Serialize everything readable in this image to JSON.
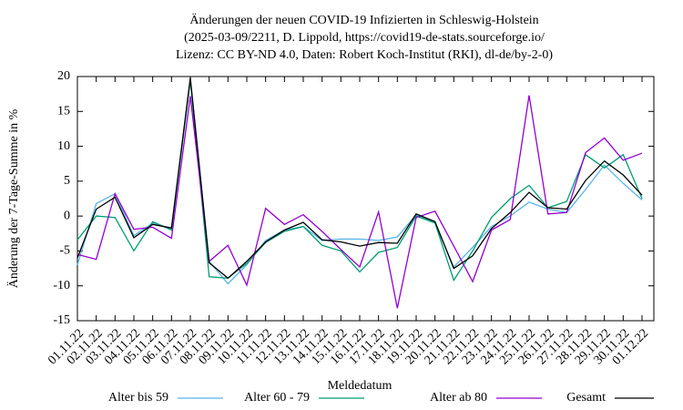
{
  "chart_data": {
    "type": "line",
    "title": "Änderungen der neuen COVID-19 Infizierten in Schleswig-Holstein",
    "subtitle": "(2025-03-09/2211, D. Lippold, https://covid19-de-stats.sourceforge.io/",
    "subtitle2": "Lizenz: CC BY-ND 4.0, Daten: Robert Koch-Institut (RKI), dl-de/by-2-0)",
    "x_label": "Meldedatum",
    "y_label": "Änderung der 7-Tage-Summe in %",
    "categories": [
      "01.11.22",
      "02.11.22",
      "03.11.22",
      "04.11.22",
      "05.11.22",
      "06.11.22",
      "07.11.22",
      "08.11.22",
      "09.11.22",
      "10.11.22",
      "11.11.22",
      "12.11.22",
      "13.11.22",
      "14.11.22",
      "15.11.22",
      "16.11.22",
      "17.11.22",
      "18.11.22",
      "19.11.22",
      "20.11.22",
      "21.11.22",
      "22.11.22",
      "23.11.22",
      "24.11.22",
      "25.11.22",
      "26.11.22",
      "27.11.22",
      "28.11.22",
      "29.11.22",
      "30.11.22",
      "01.12.22"
    ],
    "ylim": [
      -15,
      20
    ],
    "yticks": [
      -15,
      -10,
      -5,
      0,
      5,
      10,
      15,
      20
    ],
    "legend": "bottom",
    "series": [
      {
        "name": "Alter bis 59",
        "color": "#56b4e9",
        "values": [
          -7.0,
          1.8,
          3.2,
          -2.8,
          -1.0,
          -1.8,
          19.5,
          -6.5,
          -9.7,
          -7.0,
          -3.5,
          -2.0,
          -1.5,
          -3.5,
          -3.3,
          -3.3,
          -3.5,
          -3.0,
          0.2,
          -1.0,
          -7.3,
          -4.5,
          -1.5,
          0.0,
          2.0,
          1.0,
          0.5,
          3.8,
          7.3,
          4.7,
          2.3
        ]
      },
      {
        "name": "Alter 60 - 79",
        "color": "#009e73",
        "values": [
          -3.4,
          0.0,
          -0.2,
          -5.0,
          -0.8,
          -2.0,
          19.5,
          -8.7,
          -8.9,
          -6.8,
          -3.8,
          -2.2,
          -1.5,
          -4.2,
          -5.0,
          -8.0,
          -5.2,
          -4.5,
          0.0,
          -1.0,
          -9.2,
          -5.0,
          -0.2,
          2.5,
          4.4,
          1.2,
          2.1,
          8.8,
          6.9,
          8.8,
          2.5
        ]
      },
      {
        "name": "Alter ab 80",
        "color": "#9400d3",
        "values": [
          -5.5,
          -6.2,
          3.2,
          -1.9,
          -1.6,
          -3.2,
          17.2,
          -6.5,
          -4.2,
          -9.9,
          1.1,
          -1.2,
          0.2,
          -2.2,
          -4.8,
          -7.3,
          0.6,
          -13.2,
          -0.2,
          0.7,
          -4.3,
          -9.4,
          -2.0,
          -0.5,
          17.3,
          0.3,
          0.5,
          9.1,
          11.2,
          8.0,
          9.0
        ]
      },
      {
        "name": "Gesamt",
        "color": "#000000",
        "values": [
          -6.0,
          1.0,
          2.7,
          -3.1,
          -1.2,
          -1.7,
          19.8,
          -6.7,
          -8.9,
          -6.5,
          -3.7,
          -2.0,
          -0.9,
          -3.4,
          -3.7,
          -4.3,
          -3.8,
          -3.9,
          0.3,
          -0.8,
          -7.5,
          -5.7,
          -1.8,
          0.5,
          3.4,
          1.2,
          1.0,
          5.1,
          7.9,
          5.9,
          3.0
        ]
      }
    ]
  }
}
